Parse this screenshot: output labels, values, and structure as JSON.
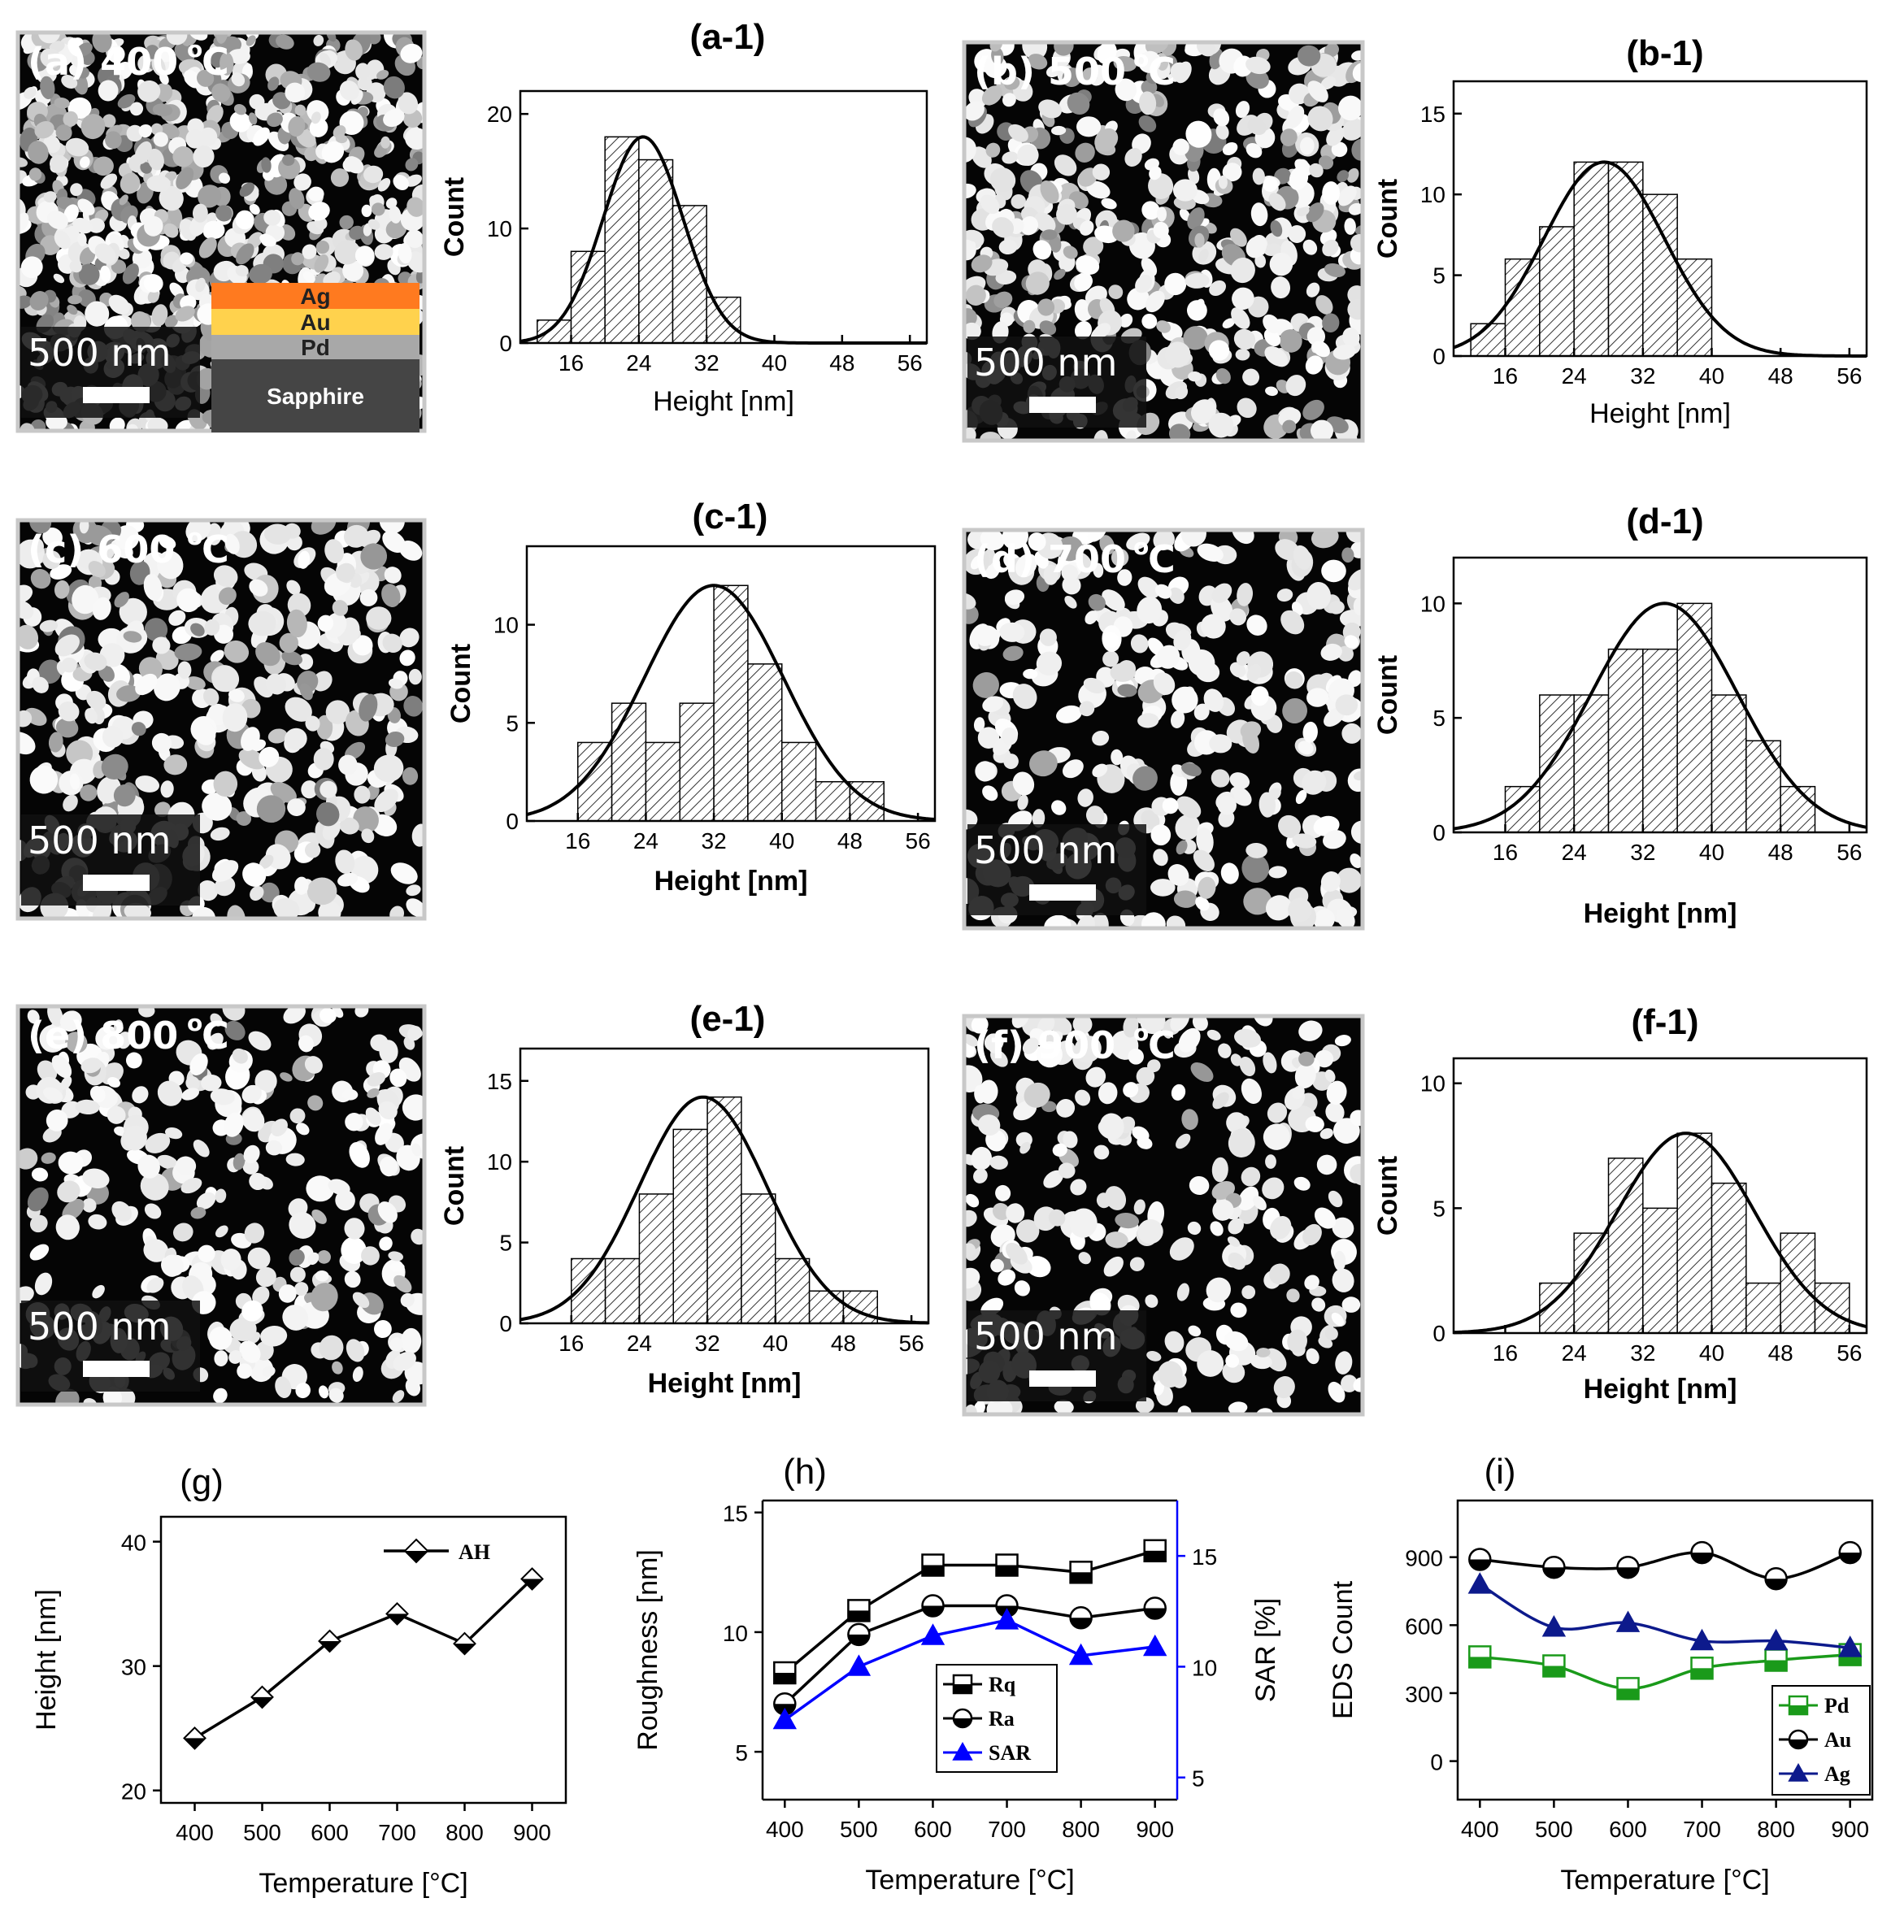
{
  "chart_data": [
    {
      "id": "a",
      "type": "image",
      "label": "(a) 400",
      "temp_sup": "o",
      "temp_unit": "C",
      "scale": "500 nm",
      "inset_layers": [
        "Ag",
        "Au",
        "Pd",
        "Sapphire"
      ],
      "inset_colors": [
        "#ff7a1f",
        "#ffd24d",
        "#a8a8a8",
        "#454545"
      ]
    },
    {
      "id": "a-1",
      "type": "bar",
      "title": "(a-1)",
      "xlabel": "Height [nm]",
      "ylabel": "Count",
      "xlim": [
        10,
        58
      ],
      "ylim": [
        0,
        22
      ],
      "xticks": [
        "16",
        "24",
        "32",
        "40",
        "48",
        "56"
      ],
      "yticks": [
        "0",
        "10",
        "20"
      ],
      "bin_edges": [
        12,
        16,
        20,
        24,
        28,
        32,
        36
      ],
      "values": [
        2,
        8,
        18,
        16,
        12,
        4
      ],
      "fit": {
        "mean": 24.5,
        "sigma": 4.7,
        "amplitude": 18
      }
    },
    {
      "id": "b",
      "type": "image",
      "label": "(b) 500",
      "temp_sup": "o",
      "temp_unit": "C",
      "scale": "500 nm"
    },
    {
      "id": "b-1",
      "type": "bar",
      "title": "(b-1)",
      "xlabel": "Height [nm]",
      "ylabel": "Count",
      "xlim": [
        10,
        58
      ],
      "ylim": [
        0,
        17
      ],
      "xticks": [
        "16",
        "24",
        "32",
        "40",
        "48",
        "56"
      ],
      "yticks": [
        "0",
        "5",
        "10",
        "15"
      ],
      "bin_edges": [
        12,
        16,
        20,
        24,
        28,
        32,
        36,
        40
      ],
      "values": [
        2,
        6,
        8,
        12,
        12,
        10,
        6
      ],
      "fit": {
        "mean": 27.5,
        "sigma": 7.0,
        "amplitude": 12
      }
    },
    {
      "id": "c",
      "type": "image",
      "label": "(c) 600",
      "temp_sup": "o",
      "temp_unit": "C",
      "scale": "500 nm"
    },
    {
      "id": "c-1",
      "type": "bar",
      "title": "(c-1)",
      "xlabel": "Height [nm]",
      "ylabel": "Count",
      "xlim": [
        10,
        58
      ],
      "ylim": [
        0,
        14
      ],
      "xticks": [
        "16",
        "24",
        "32",
        "40",
        "48",
        "56"
      ],
      "yticks": [
        "0",
        "5",
        "10"
      ],
      "bin_edges": [
        16,
        20,
        24,
        28,
        32,
        36,
        40,
        44,
        48,
        52
      ],
      "values": [
        4,
        6,
        4,
        6,
        12,
        8,
        4,
        2,
        2
      ],
      "fit": {
        "mean": 32,
        "sigma": 8.2,
        "amplitude": 12
      }
    },
    {
      "id": "d",
      "type": "image",
      "label": "(d) 700",
      "temp_sup": "o",
      "temp_unit": "C",
      "scale": "500 nm"
    },
    {
      "id": "d-1",
      "type": "bar",
      "title": "(d-1)",
      "xlabel": "Height [nm]",
      "ylabel": "Count",
      "xlim": [
        10,
        58
      ],
      "ylim": [
        0,
        12
      ],
      "xticks": [
        "16",
        "24",
        "32",
        "40",
        "48",
        "56"
      ],
      "yticks": [
        "0",
        "5",
        "10"
      ],
      "bin_edges": [
        16,
        20,
        24,
        28,
        32,
        36,
        40,
        44,
        48,
        52
      ],
      "values": [
        2,
        6,
        6,
        8,
        8,
        10,
        6,
        4,
        2
      ],
      "fit": {
        "mean": 34.5,
        "sigma": 8.5,
        "amplitude": 10
      }
    },
    {
      "id": "e",
      "type": "image",
      "label": "(e) 800",
      "temp_sup": "o",
      "temp_unit": "C",
      "scale": "500 nm"
    },
    {
      "id": "e-1",
      "type": "bar",
      "title": "(e-1)",
      "xlabel": "Height [nm]",
      "ylabel": "Count",
      "xlim": [
        10,
        58
      ],
      "ylim": [
        0,
        17
      ],
      "xticks": [
        "16",
        "24",
        "32",
        "40",
        "48",
        "56"
      ],
      "yticks": [
        "0",
        "5",
        "10",
        "15"
      ],
      "bin_edges": [
        16,
        20,
        24,
        28,
        32,
        36,
        40,
        44,
        48,
        52
      ],
      "values": [
        4,
        4,
        8,
        12,
        14,
        8,
        4,
        2,
        2
      ],
      "fit": {
        "mean": 31.5,
        "sigma": 7.5,
        "amplitude": 14
      }
    },
    {
      "id": "f",
      "type": "image",
      "label": "(f) 900",
      "temp_sup": "o",
      "temp_unit": "C",
      "scale": "500 nm"
    },
    {
      "id": "f-1",
      "type": "bar",
      "title": "(f-1)",
      "xlabel": "Height [nm]",
      "ylabel": "Count",
      "xlim": [
        10,
        58
      ],
      "ylim": [
        0,
        11
      ],
      "xticks": [
        "16",
        "24",
        "32",
        "40",
        "48",
        "56"
      ],
      "yticks": [
        "0",
        "5",
        "10"
      ],
      "bin_edges": [
        20,
        24,
        28,
        32,
        36,
        40,
        44,
        48,
        52,
        56
      ],
      "values": [
        2,
        4,
        7,
        5,
        8,
        6,
        2,
        4,
        2
      ],
      "fit": {
        "mean": 37,
        "sigma": 8.0,
        "amplitude": 8
      }
    },
    {
      "id": "g",
      "type": "line",
      "title": "(g)",
      "xlabel": "Temperature [°C]",
      "ylabel": "Height [nm]",
      "x": [
        400,
        500,
        600,
        700,
        800,
        900
      ],
      "xlim": [
        350,
        950
      ],
      "ylim": [
        19,
        42
      ],
      "yticks": [
        "20",
        "30",
        "40"
      ],
      "xticks": [
        "400",
        "500",
        "600",
        "700",
        "800",
        "900"
      ],
      "series": [
        {
          "name": "AH",
          "values": [
            24.2,
            27.5,
            32.0,
            34.2,
            31.8,
            37.0
          ]
        }
      ]
    },
    {
      "id": "h",
      "type": "line",
      "title": "(h)",
      "xlabel": "Temperature [°C]",
      "ylabel": "Roughness [nm]",
      "ylabel_right": "SAR [%]",
      "x": [
        400,
        500,
        600,
        700,
        800,
        900
      ],
      "xlim": [
        370,
        930
      ],
      "ylim": [
        3,
        15.5
      ],
      "ylim_right": [
        4,
        17.5
      ],
      "yticks": [
        "5",
        "10",
        "15"
      ],
      "yticks_right": [
        "5",
        "10",
        "15"
      ],
      "xticks": [
        "400",
        "500",
        "600",
        "700",
        "800",
        "900"
      ],
      "series": [
        {
          "name": "Rq",
          "axis": "left",
          "marker": "square",
          "color": "#000000",
          "values": [
            8.3,
            10.9,
            12.8,
            12.8,
            12.5,
            13.4
          ]
        },
        {
          "name": "Ra",
          "axis": "left",
          "marker": "circle",
          "color": "#000000",
          "values": [
            7.0,
            9.9,
            11.1,
            11.1,
            10.6,
            11.0
          ]
        },
        {
          "name": "SAR",
          "axis": "right",
          "marker": "triangle",
          "color": "#0000ff",
          "values": [
            7.6,
            10.0,
            11.4,
            12.1,
            10.5,
            10.9
          ]
        }
      ]
    },
    {
      "id": "i",
      "type": "line",
      "title": "(i)",
      "xlabel": "Temperature [°C]",
      "ylabel": "EDS Count",
      "x": [
        400,
        500,
        600,
        700,
        800,
        900
      ],
      "xlim": [
        370,
        930
      ],
      "ylim": [
        -170,
        1150
      ],
      "yticks": [
        "0",
        "300",
        "600",
        "900"
      ],
      "xticks": [
        "400",
        "500",
        "600",
        "700",
        "800",
        "900"
      ],
      "series": [
        {
          "name": "Pd",
          "marker": "square",
          "color": "#1a9a1a",
          "values": [
            460,
            420,
            320,
            410,
            445,
            470
          ]
        },
        {
          "name": "Au",
          "marker": "circle",
          "color": "#000000",
          "values": [
            890,
            855,
            855,
            920,
            805,
            920
          ]
        },
        {
          "name": "Ag",
          "marker": "triangle",
          "color": "#0d1a8c",
          "values": [
            780,
            590,
            610,
            530,
            530,
            500
          ]
        }
      ]
    }
  ]
}
